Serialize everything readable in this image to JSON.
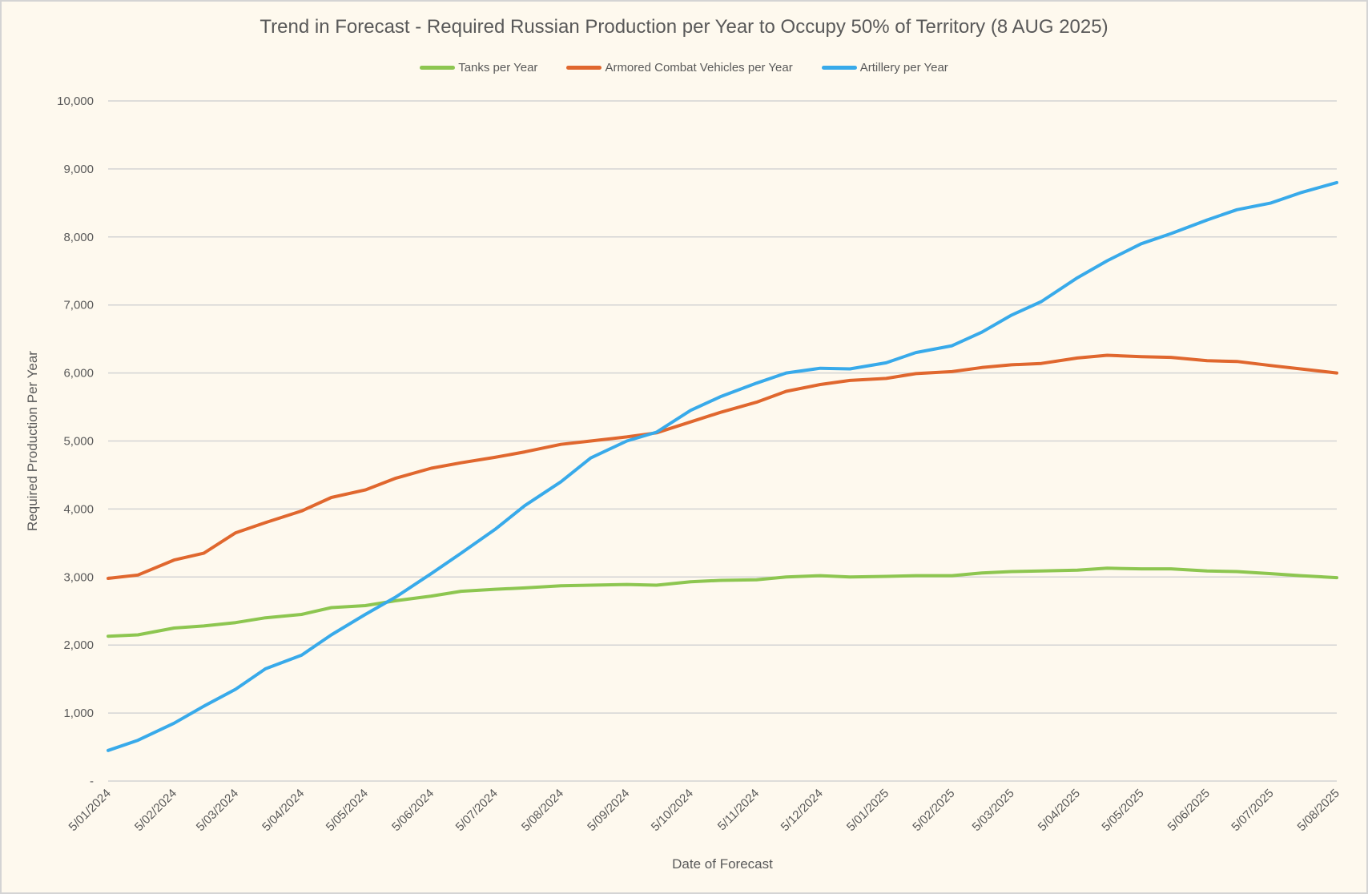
{
  "chart_data": {
    "type": "line",
    "title": "Trend in Forecast - Required Russian Production per Year to Occupy 50% of Territory (8 AUG 2025)",
    "xlabel": "Date of Forecast",
    "ylabel": "Required Production Per Year",
    "ylim": [
      0,
      10000
    ],
    "yticks": [
      0,
      1000,
      2000,
      3000,
      4000,
      5000,
      6000,
      7000,
      8000,
      9000,
      10000
    ],
    "ytick_labels": [
      "-",
      "1,000",
      "2,000",
      "3,000",
      "4,000",
      "5,000",
      "6,000",
      "7,000",
      "8,000",
      "9,000",
      "10,000"
    ],
    "xtick_labels": [
      "5/01/2024",
      "5/02/2024",
      "5/03/2024",
      "5/04/2024",
      "5/05/2024",
      "5/06/2024",
      "5/07/2024",
      "5/08/2024",
      "5/09/2024",
      "5/10/2024",
      "5/11/2024",
      "5/12/2024",
      "5/01/2025",
      "5/02/2025",
      "5/03/2025",
      "5/04/2025",
      "5/05/2025",
      "5/06/2025",
      "5/07/2025",
      "5/08/2025"
    ],
    "grid": "horizontal",
    "legend_position": "top",
    "x": [
      "2024-01-05",
      "2024-01-19",
      "2024-02-05",
      "2024-02-19",
      "2024-03-05",
      "2024-03-19",
      "2024-04-05",
      "2024-04-19",
      "2024-05-05",
      "2024-05-19",
      "2024-06-05",
      "2024-06-19",
      "2024-07-05",
      "2024-07-19",
      "2024-08-05",
      "2024-08-19",
      "2024-09-05",
      "2024-09-19",
      "2024-10-05",
      "2024-10-19",
      "2024-11-05",
      "2024-11-19",
      "2024-12-05",
      "2024-12-19",
      "2025-01-05",
      "2025-01-19",
      "2025-02-05",
      "2025-02-19",
      "2025-03-05",
      "2025-03-19",
      "2025-04-05",
      "2025-04-19",
      "2025-05-05",
      "2025-05-19",
      "2025-06-05",
      "2025-06-19",
      "2025-07-05",
      "2025-07-19",
      "2025-08-05"
    ],
    "series": [
      {
        "name": "Tanks per Year",
        "color": "#8dc650",
        "values": [
          2130,
          2150,
          2250,
          2280,
          2330,
          2400,
          2450,
          2550,
          2580,
          2650,
          2720,
          2790,
          2820,
          2840,
          2870,
          2880,
          2890,
          2880,
          2930,
          2950,
          2960,
          3000,
          3020,
          3000,
          3010,
          3020,
          3020,
          3060,
          3080,
          3090,
          3100,
          3130,
          3120,
          3120,
          3090,
          3080,
          3050,
          3020,
          2990
        ]
      },
      {
        "name": "Armored Combat Vehicles per Year",
        "color": "#e0672e",
        "values": [
          2980,
          3030,
          3250,
          3350,
          3650,
          3800,
          3970,
          4170,
          4280,
          4450,
          4600,
          4680,
          4760,
          4840,
          4950,
          5000,
          5060,
          5120,
          5280,
          5420,
          5570,
          5730,
          5830,
          5890,
          5920,
          5990,
          6020,
          6080,
          6120,
          6140,
          6220,
          6260,
          6240,
          6230,
          6180,
          6170,
          6110,
          6060,
          6000
        ]
      },
      {
        "name": "Artillery per Year",
        "color": "#38aaea",
        "values": [
          450,
          600,
          850,
          1100,
          1350,
          1650,
          1850,
          2150,
          2450,
          2700,
          3050,
          3350,
          3700,
          4050,
          4400,
          4750,
          5000,
          5130,
          5450,
          5650,
          5850,
          6000,
          6070,
          6060,
          6150,
          6300,
          6400,
          6600,
          6850,
          7050,
          7400,
          7650,
          7900,
          8050,
          8250,
          8400,
          8500,
          8650,
          8800
        ]
      }
    ]
  }
}
